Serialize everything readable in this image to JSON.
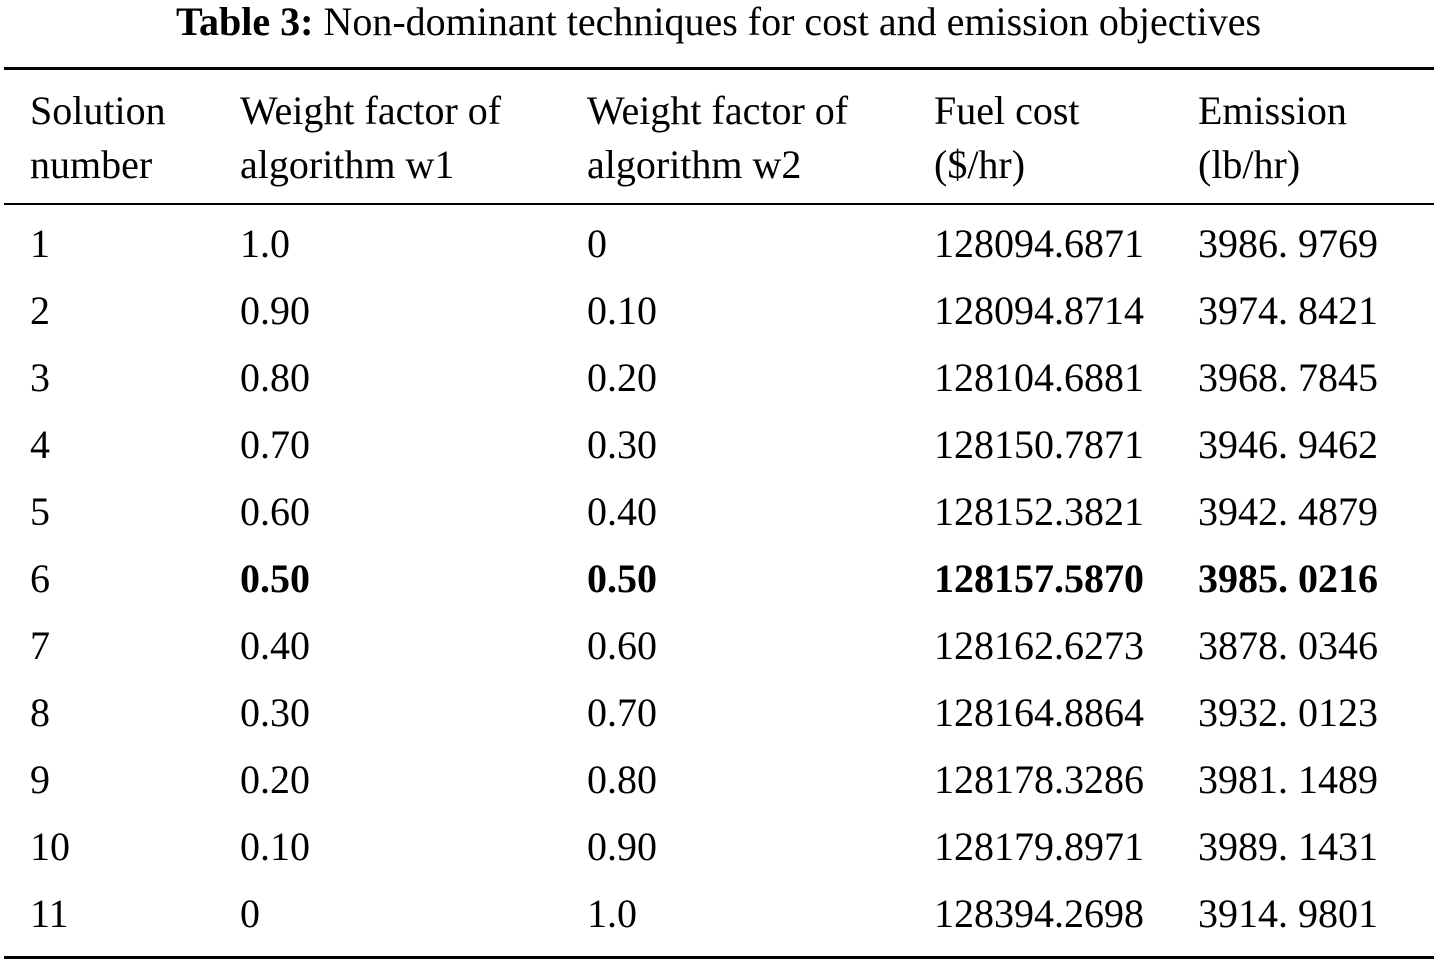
{
  "caption": {
    "label": "Table 3:",
    "text": "Non-dominant techniques for cost and emission objectives"
  },
  "columns": [
    {
      "line1": "Solution",
      "line2": "number"
    },
    {
      "line1": "Weight factor of",
      "line2": "algorithm w1"
    },
    {
      "line1": "Weight factor of",
      "line2": "algorithm w2"
    },
    {
      "line1": "Fuel cost",
      "line2": "($/hr)"
    },
    {
      "line1": "Emission",
      "line2": "(lb/hr)"
    }
  ],
  "rows": [
    {
      "n": "1",
      "w1": "1.0",
      "w2": "0",
      "cost": "128094.6871",
      "emission": "3986. 9769",
      "bold": false
    },
    {
      "n": "2",
      "w1": "0.90",
      "w2": "0.10",
      "cost": "128094.8714",
      "emission": "3974. 8421",
      "bold": false
    },
    {
      "n": "3",
      "w1": "0.80",
      "w2": "0.20",
      "cost": "128104.6881",
      "emission": "3968. 7845",
      "bold": false
    },
    {
      "n": "4",
      "w1": "0.70",
      "w2": "0.30",
      "cost": "128150.7871",
      "emission": "3946. 9462",
      "bold": false
    },
    {
      "n": "5",
      "w1": "0.60",
      "w2": "0.40",
      "cost": "128152.3821",
      "emission": "3942. 4879",
      "bold": false
    },
    {
      "n": "6",
      "w1": "0.50",
      "w2": "0.50",
      "cost": "128157.5870",
      "emission": "3985. 0216",
      "bold": true
    },
    {
      "n": "7",
      "w1": "0.40",
      "w2": "0.60",
      "cost": "128162.6273",
      "emission": "3878. 0346",
      "bold": false
    },
    {
      "n": "8",
      "w1": "0.30",
      "w2": "0.70",
      "cost": "128164.8864",
      "emission": "3932. 0123",
      "bold": false
    },
    {
      "n": "9",
      "w1": "0.20",
      "w2": "0.80",
      "cost": "128178.3286",
      "emission": "3981. 1489",
      "bold": false
    },
    {
      "n": "10",
      "w1": "0.10",
      "w2": "0.90",
      "cost": "128179.8971",
      "emission": "3989. 1431",
      "bold": false
    },
    {
      "n": "11",
      "w1": "0",
      "w2": "1.0",
      "cost": "128394.2698",
      "emission": "3914. 9801",
      "bold": false
    }
  ]
}
